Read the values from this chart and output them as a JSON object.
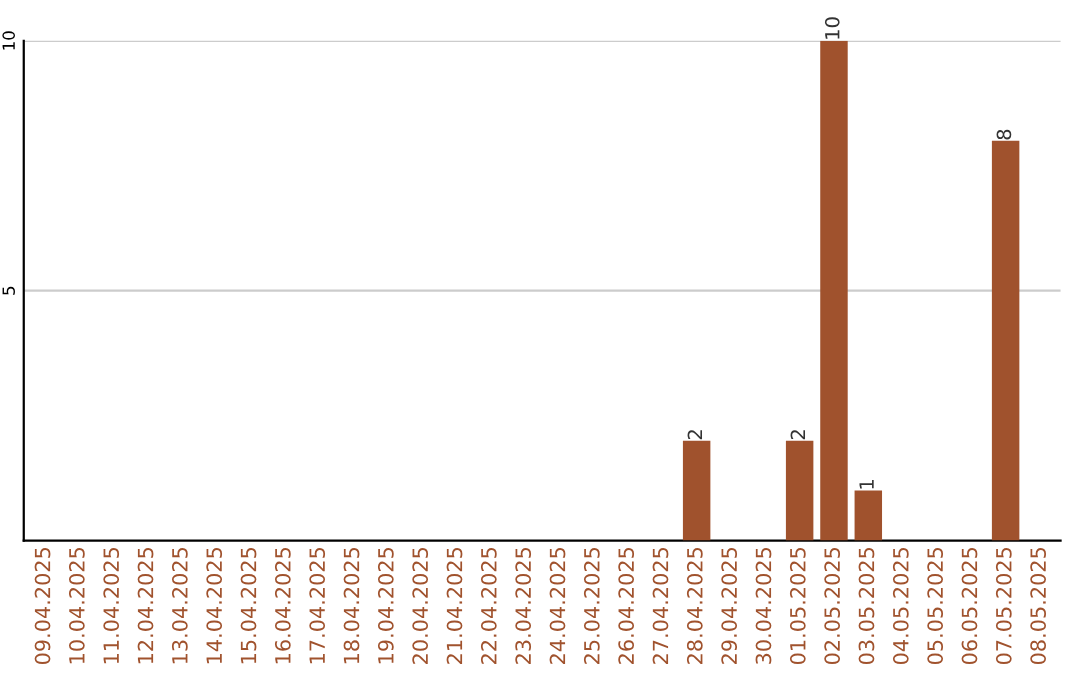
{
  "chart_data": {
    "type": "bar",
    "categories": [
      "09.04.2025",
      "10.04.2025",
      "11.04.2025",
      "12.04.2025",
      "13.04.2025",
      "14.04.2025",
      "15.04.2025",
      "16.04.2025",
      "17.04.2025",
      "18.04.2025",
      "19.04.2025",
      "20.04.2025",
      "21.04.2025",
      "22.04.2025",
      "23.04.2025",
      "24.04.2025",
      "25.04.2025",
      "26.04.2025",
      "27.04.2025",
      "28.04.2025",
      "29.04.2025",
      "30.04.2025",
      "01.05.2025",
      "02.05.2025",
      "03.05.2025",
      "04.05.2025",
      "05.05.2025",
      "06.05.2025",
      "07.05.2025",
      "08.05.2025"
    ],
    "values": [
      0,
      0,
      0,
      0,
      0,
      0,
      0,
      0,
      0,
      0,
      0,
      0,
      0,
      0,
      0,
      0,
      0,
      0,
      0,
      2,
      0,
      0,
      2,
      10,
      1,
      0,
      0,
      0,
      8,
      0
    ],
    "value_labels": [
      null,
      null,
      null,
      null,
      null,
      null,
      null,
      null,
      null,
      null,
      null,
      null,
      null,
      null,
      null,
      null,
      null,
      null,
      null,
      "2",
      null,
      null,
      "2",
      "10",
      "1",
      null,
      null,
      null,
      "8",
      null
    ],
    "color": "#a0522d",
    "ylim": [
      0,
      10
    ],
    "yticks": [
      5,
      10
    ],
    "grid": "y"
  }
}
